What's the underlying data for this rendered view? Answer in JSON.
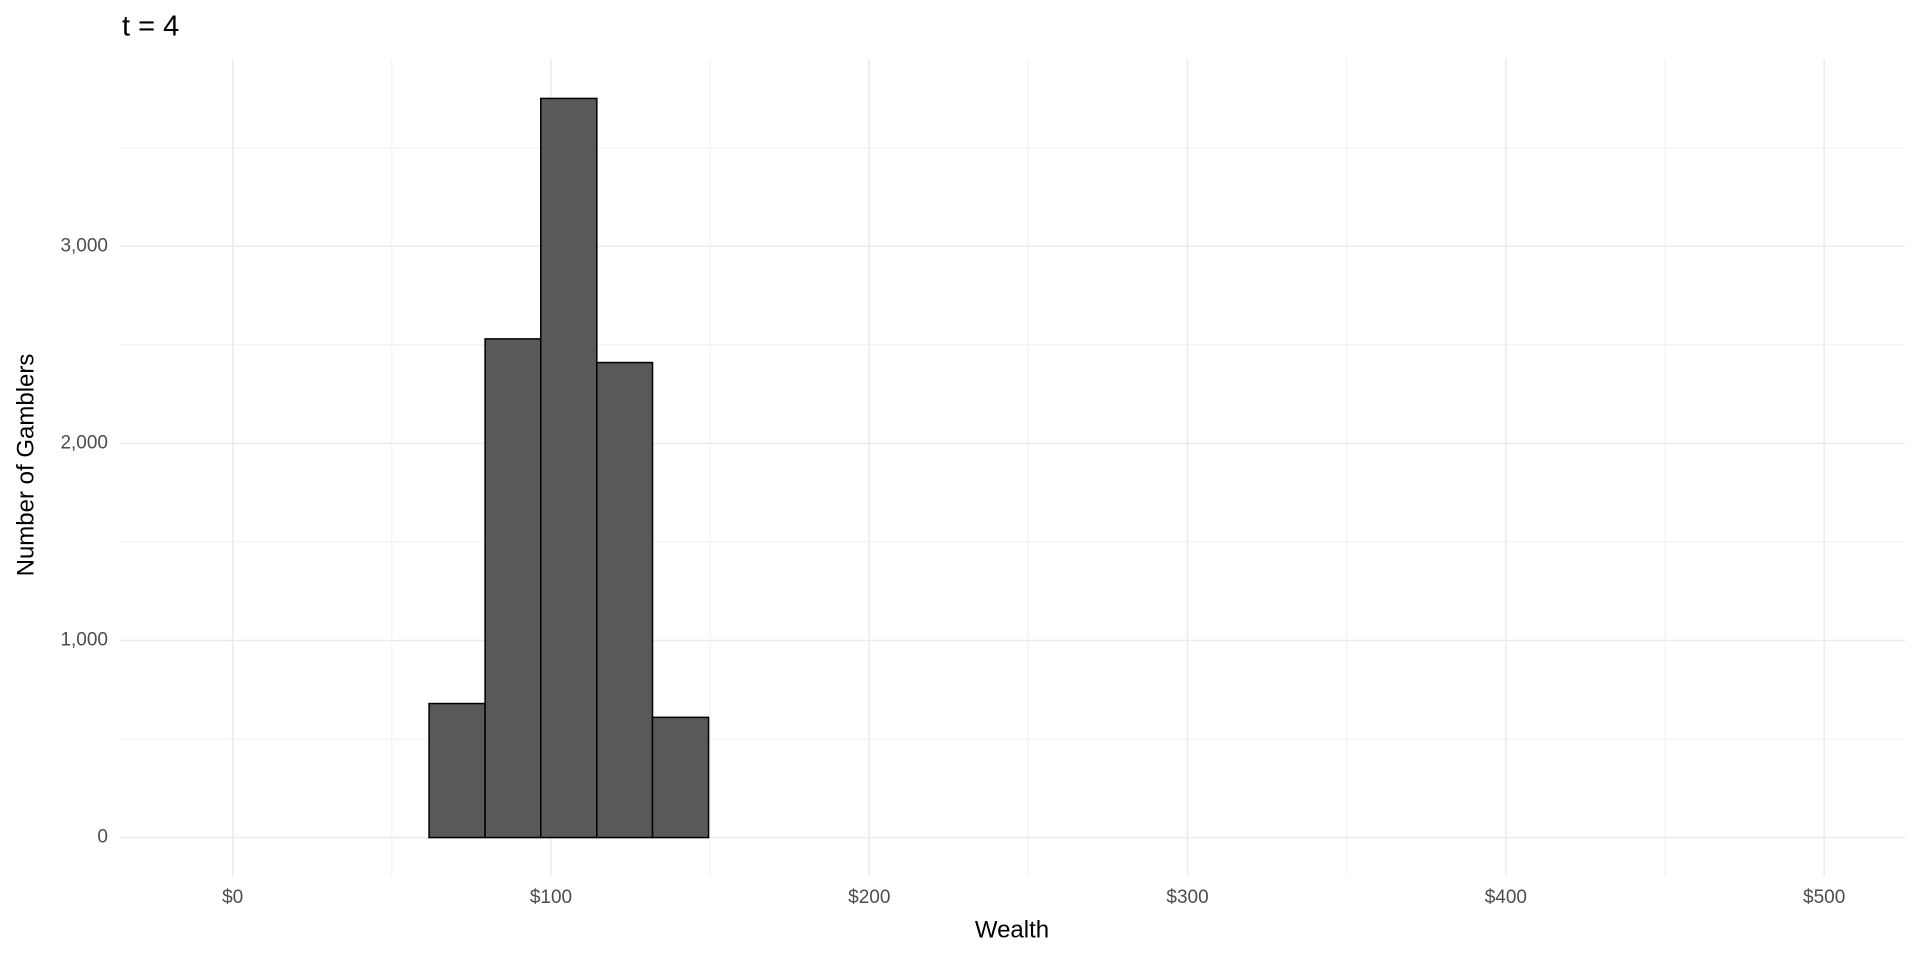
{
  "chart_data": {
    "type": "histogram",
    "title": "t = 4",
    "x_label": "Wealth",
    "y_label": "Number of Gamblers",
    "bins": [
      -8.5,
      9.1,
      26.6,
      44.2,
      61.7,
      79.3,
      96.8,
      114.4,
      131.9,
      149.5,
      167.0,
      184.6,
      202.1,
      219.7,
      237.2,
      254.8,
      272.3,
      289.9,
      307.4,
      325.0,
      342.5,
      360.1,
      377.6,
      395.2,
      412.7,
      430.3,
      447.8,
      465.4,
      482.9
    ],
    "values": [
      0,
      0,
      0,
      0,
      680,
      2530,
      3750,
      2410,
      610,
      0,
      0,
      0,
      0,
      0,
      0,
      0,
      0,
      0,
      0,
      0,
      0,
      0,
      0,
      0,
      0,
      0,
      0,
      0
    ],
    "color": "#595959",
    "edge_color": "#000000",
    "xlim": [
      -35.4,
      525.4
    ],
    "ylim": [
      -195,
      3950
    ],
    "xticks": [
      {
        "value": 0,
        "label": "$0"
      },
      {
        "value": 100,
        "label": "$100"
      },
      {
        "value": 200,
        "label": "$200"
      },
      {
        "value": 300,
        "label": "$300"
      },
      {
        "value": 400,
        "label": "$400"
      },
      {
        "value": 500,
        "label": "$500"
      }
    ],
    "yticks": [
      0,
      {
        "value": 1000,
        "label": "1,000"
      },
      {
        "value": 2000,
        "label": "2,000"
      },
      {
        "value": 3000,
        "label": "3,000"
      }
    ],
    "minor_xticks": [
      50,
      150,
      250,
      350,
      450
    ],
    "minor_yticks": [
      500,
      1500,
      2500,
      3500
    ],
    "grid": true
  }
}
